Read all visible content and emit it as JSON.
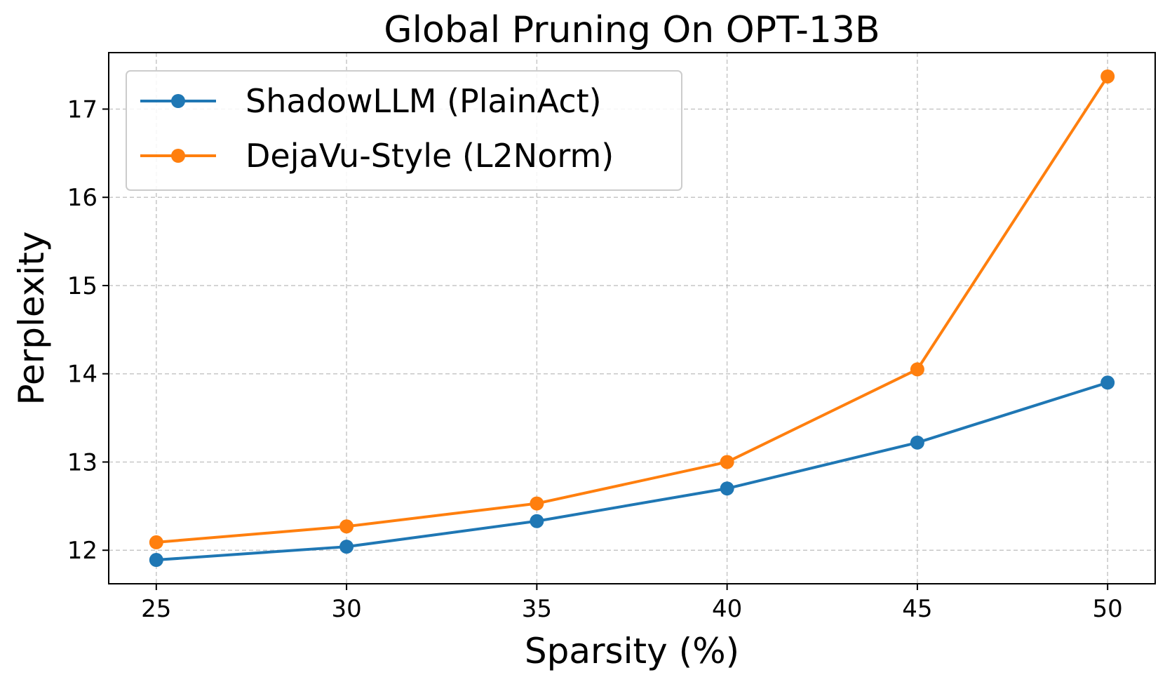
{
  "chart_data": {
    "type": "line",
    "title": "Global Pruning On OPT-13B",
    "xlabel": "Sparsity (%)",
    "ylabel": "Perplexity",
    "x": [
      25,
      30,
      35,
      40,
      45,
      50
    ],
    "xticks": [
      "25",
      "30",
      "35",
      "40",
      "45",
      "50"
    ],
    "yticks": [
      "12",
      "13",
      "14",
      "15",
      "16",
      "17"
    ],
    "xlim": [
      23.75,
      51.25
    ],
    "ylim": [
      11.62,
      17.64
    ],
    "grid": true,
    "legend_position": "top-left",
    "series": [
      {
        "name": "ShadowLLM (PlainAct)",
        "color": "#1f77b4",
        "marker": "circle",
        "values": [
          11.89,
          12.04,
          12.33,
          12.7,
          13.22,
          13.9
        ]
      },
      {
        "name": "DejaVu-Style (L2Norm)",
        "color": "#ff7f0e",
        "marker": "circle",
        "values": [
          12.09,
          12.27,
          12.53,
          13.0,
          14.05,
          17.37
        ]
      }
    ]
  }
}
